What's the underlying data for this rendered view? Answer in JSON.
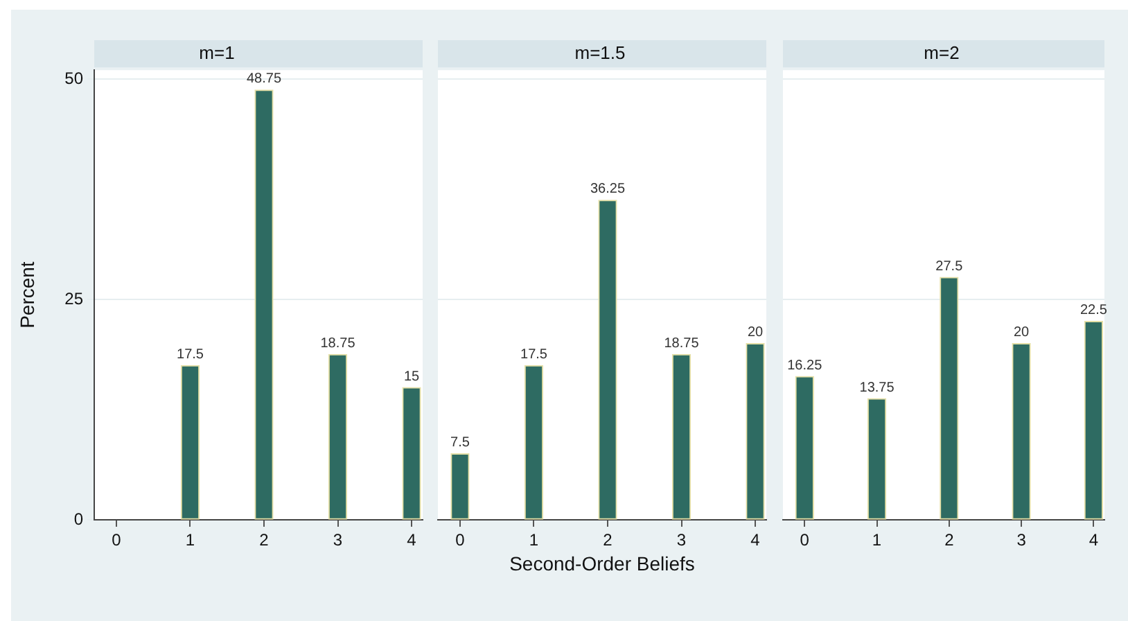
{
  "chart_data": [
    {
      "type": "bar",
      "title": "m=1",
      "ylabel": "Percent",
      "x": [
        1,
        2,
        3,
        4
      ],
      "values": [
        17.5,
        48.75,
        18.75,
        15
      ],
      "color": "#2e6b62",
      "xlim": [
        -0.3,
        4.15
      ],
      "xticks": [
        0,
        1,
        2,
        3,
        4
      ],
      "ylim": [
        0,
        51
      ],
      "yticks": [
        0,
        25,
        50
      ],
      "grid": "y",
      "data_labels": true
    },
    {
      "type": "bar",
      "title": "m=1.5",
      "xlabel": "Second-Order Beliefs",
      "x": [
        0,
        1,
        2,
        3,
        4
      ],
      "values": [
        7.5,
        17.5,
        36.25,
        18.75,
        20
      ],
      "color": "#2e6b62",
      "xlim": [
        -0.3,
        4.15
      ],
      "xticks": [
        0,
        1,
        2,
        3,
        4
      ],
      "ylim": [
        0,
        51
      ],
      "yticks": [
        0,
        25,
        50
      ],
      "grid": "y",
      "data_labels": true,
      "tick_labels": "x"
    },
    {
      "type": "bar",
      "title": "m=2",
      "x": [
        0,
        1,
        2,
        3,
        4
      ],
      "values": [
        16.25,
        13.75,
        27.5,
        20,
        22.5
      ],
      "color": "#2e6b62",
      "xlim": [
        -0.3,
        4.15
      ],
      "xticks": [
        0,
        1,
        2,
        3,
        4
      ],
      "ylim": [
        0,
        51
      ],
      "yticks": [
        0,
        25,
        50
      ],
      "grid": "y",
      "data_labels": true,
      "tick_labels": "x"
    }
  ]
}
